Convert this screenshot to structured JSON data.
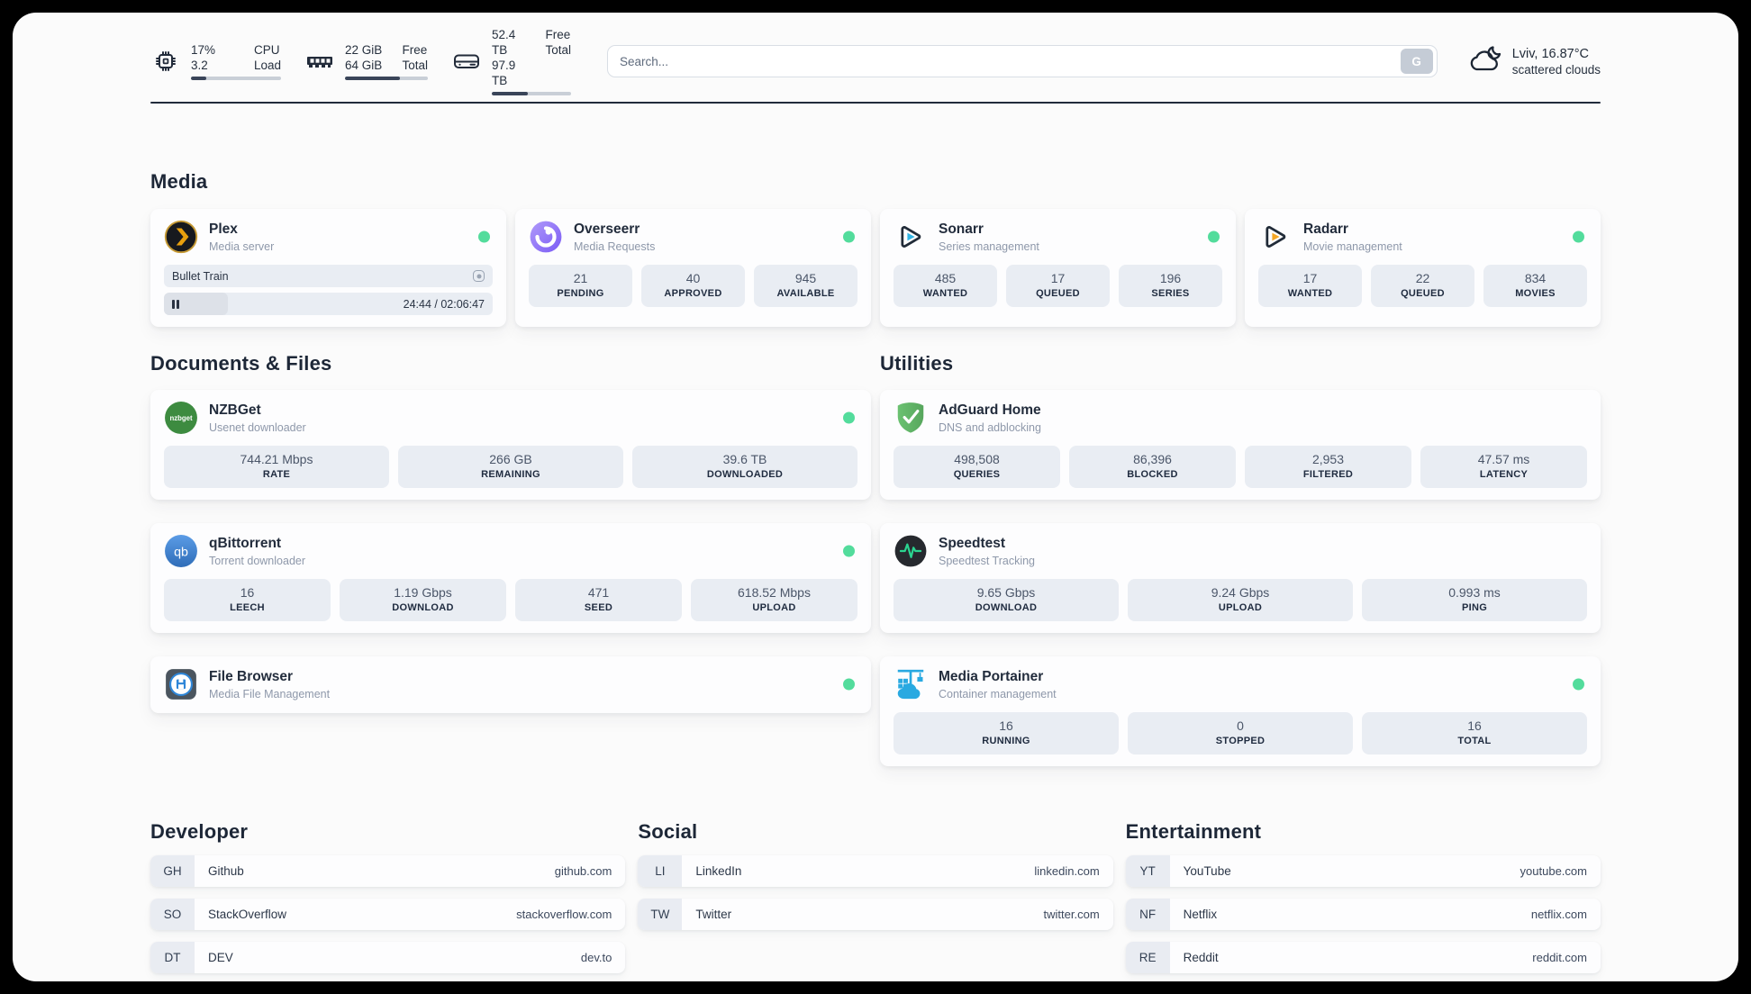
{
  "topbar": {
    "cpu": {
      "value_line1": "17%",
      "value_line2": "3.2",
      "label_line1": "CPU",
      "label_line2": "Load",
      "usage_percent": 17
    },
    "memory": {
      "value_line1": "22 GiB",
      "value_line2": "64 GiB",
      "label_line1": "Free",
      "label_line2": "Total",
      "usage_percent": 66
    },
    "disk": {
      "value_line1": "52.4 TB",
      "value_line2": "97.9 TB",
      "label_line1": "Free",
      "label_line2": "Total",
      "usage_percent": 46
    },
    "search": {
      "placeholder": "Search...",
      "engine_button_label": "G"
    },
    "weather": {
      "location_temperature": "Lviv, 16.87°C",
      "condition": "scattered clouds"
    }
  },
  "sections": {
    "media": {
      "title": "Media",
      "plex": {
        "name": "Plex",
        "subtitle": "Media server",
        "now_playing": "Bullet Train",
        "progress_time": "24:44 / 02:06:47",
        "progress_percent": 19.5
      },
      "overseerr": {
        "name": "Overseerr",
        "subtitle": "Media Requests",
        "stats": [
          {
            "value": "21",
            "label": "PENDING"
          },
          {
            "value": "40",
            "label": "APPROVED"
          },
          {
            "value": "945",
            "label": "AVAILABLE"
          }
        ]
      },
      "sonarr": {
        "name": "Sonarr",
        "subtitle": "Series management",
        "stats": [
          {
            "value": "485",
            "label": "WANTED"
          },
          {
            "value": "17",
            "label": "QUEUED"
          },
          {
            "value": "196",
            "label": "SERIES"
          }
        ]
      },
      "radarr": {
        "name": "Radarr",
        "subtitle": "Movie management",
        "stats": [
          {
            "value": "17",
            "label": "WANTED"
          },
          {
            "value": "22",
            "label": "QUEUED"
          },
          {
            "value": "834",
            "label": "MOVIES"
          }
        ]
      }
    },
    "documents": {
      "title": "Documents & Files",
      "nzbget": {
        "name": "NZBGet",
        "subtitle": "Usenet downloader",
        "stats": [
          {
            "value": "744.21 Mbps",
            "label": "RATE"
          },
          {
            "value": "266 GB",
            "label": "REMAINING"
          },
          {
            "value": "39.6 TB",
            "label": "DOWNLOADED"
          }
        ]
      },
      "qbittorrent": {
        "name": "qBittorrent",
        "subtitle": "Torrent downloader",
        "stats": [
          {
            "value": "16",
            "label": "LEECH"
          },
          {
            "value": "1.19 Gbps",
            "label": "DOWNLOAD"
          },
          {
            "value": "471",
            "label": "SEED"
          },
          {
            "value": "618.52 Mbps",
            "label": "UPLOAD"
          }
        ]
      },
      "filebrowser": {
        "name": "File Browser",
        "subtitle": "Media File Management"
      }
    },
    "utilities": {
      "title": "Utilities",
      "adguard": {
        "name": "AdGuard Home",
        "subtitle": "DNS and adblocking",
        "stats": [
          {
            "value": "498,508",
            "label": "QUERIES"
          },
          {
            "value": "86,396",
            "label": "BLOCKED"
          },
          {
            "value": "2,953",
            "label": "FILTERED"
          },
          {
            "value": "47.57 ms",
            "label": "LATENCY"
          }
        ]
      },
      "speedtest": {
        "name": "Speedtest",
        "subtitle": "Speedtest Tracking",
        "stats": [
          {
            "value": "9.65 Gbps",
            "label": "DOWNLOAD"
          },
          {
            "value": "9.24 Gbps",
            "label": "UPLOAD"
          },
          {
            "value": "0.993 ms",
            "label": "PING"
          }
        ]
      },
      "portainer": {
        "name": "Media Portainer",
        "subtitle": "Container management",
        "stats": [
          {
            "value": "16",
            "label": "RUNNING"
          },
          {
            "value": "0",
            "label": "STOPPED"
          },
          {
            "value": "16",
            "label": "TOTAL"
          }
        ]
      }
    },
    "developer": {
      "title": "Developer",
      "links": [
        {
          "abbr": "GH",
          "name": "Github",
          "url": "github.com"
        },
        {
          "abbr": "SO",
          "name": "StackOverflow",
          "url": "stackoverflow.com"
        },
        {
          "abbr": "DT",
          "name": "DEV",
          "url": "dev.to"
        }
      ]
    },
    "social": {
      "title": "Social",
      "links": [
        {
          "abbr": "LI",
          "name": "LinkedIn",
          "url": "linkedin.com"
        },
        {
          "abbr": "TW",
          "name": "Twitter",
          "url": "twitter.com"
        }
      ]
    },
    "entertainment": {
      "title": "Entertainment",
      "links": [
        {
          "abbr": "YT",
          "name": "YouTube",
          "url": "youtube.com"
        },
        {
          "abbr": "NF",
          "name": "Netflix",
          "url": "netflix.com"
        },
        {
          "abbr": "RE",
          "name": "Reddit",
          "url": "reddit.com"
        }
      ]
    }
  },
  "colors": {
    "status_online": "#53dc9c",
    "plex_amber": "#e8a00d",
    "sonarr_blue": "#33b5e5",
    "radarr_orange": "#f5a623",
    "nzbget_green": "#3d8b40",
    "qbittorrent_blue": "#3d7fd0",
    "adguard_green": "#67bb6a",
    "speedtest_pulse": "#2bd490",
    "portainer_blue": "#29a9e1"
  }
}
